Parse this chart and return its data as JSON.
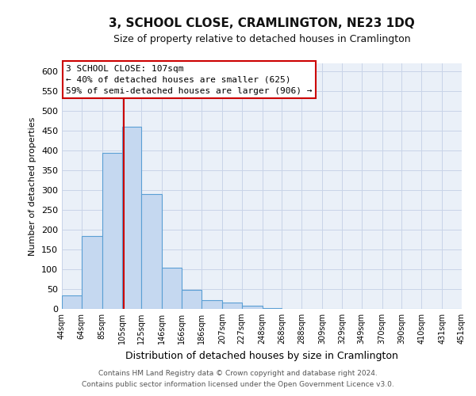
{
  "title": "3, SCHOOL CLOSE, CRAMLINGTON, NE23 1DQ",
  "subtitle": "Size of property relative to detached houses in Cramlington",
  "xlabel": "Distribution of detached houses by size in Cramlington",
  "ylabel": "Number of detached properties",
  "bar_edges": [
    44,
    64,
    85,
    105,
    125,
    146,
    166,
    186,
    207,
    227,
    248,
    268,
    288,
    309,
    329,
    349,
    370,
    390,
    410,
    431,
    451
  ],
  "bar_heights": [
    35,
    185,
    395,
    460,
    290,
    105,
    48,
    22,
    16,
    8,
    2,
    1,
    1,
    0,
    0,
    1,
    0,
    0,
    0,
    1
  ],
  "bar_color": "#c5d8f0",
  "bar_edge_color": "#5a9fd4",
  "vline_x": 107,
  "vline_color": "#cc0000",
  "ylim": [
    0,
    620
  ],
  "yticks": [
    0,
    50,
    100,
    150,
    200,
    250,
    300,
    350,
    400,
    450,
    500,
    550,
    600
  ],
  "annotation_title": "3 SCHOOL CLOSE: 107sqm",
  "annotation_line1": "← 40% of detached houses are smaller (625)",
  "annotation_line2": "59% of semi-detached houses are larger (906) →",
  "annotation_box_color": "#ffffff",
  "annotation_box_edge_color": "#cc0000",
  "tick_labels": [
    "44sqm",
    "64sqm",
    "85sqm",
    "105sqm",
    "125sqm",
    "146sqm",
    "166sqm",
    "186sqm",
    "207sqm",
    "227sqm",
    "248sqm",
    "268sqm",
    "288sqm",
    "309sqm",
    "329sqm",
    "349sqm",
    "370sqm",
    "390sqm",
    "410sqm",
    "431sqm",
    "451sqm"
  ],
  "footnote1": "Contains HM Land Registry data © Crown copyright and database right 2024.",
  "footnote2": "Contains public sector information licensed under the Open Government Licence v3.0.",
  "background_color": "#ffffff",
  "axes_bg_color": "#eaf0f8",
  "grid_color": "#c8d4e8",
  "title_fontsize": 11,
  "subtitle_fontsize": 9,
  "ylabel_fontsize": 8,
  "xlabel_fontsize": 9,
  "ytick_fontsize": 8,
  "xtick_fontsize": 7
}
